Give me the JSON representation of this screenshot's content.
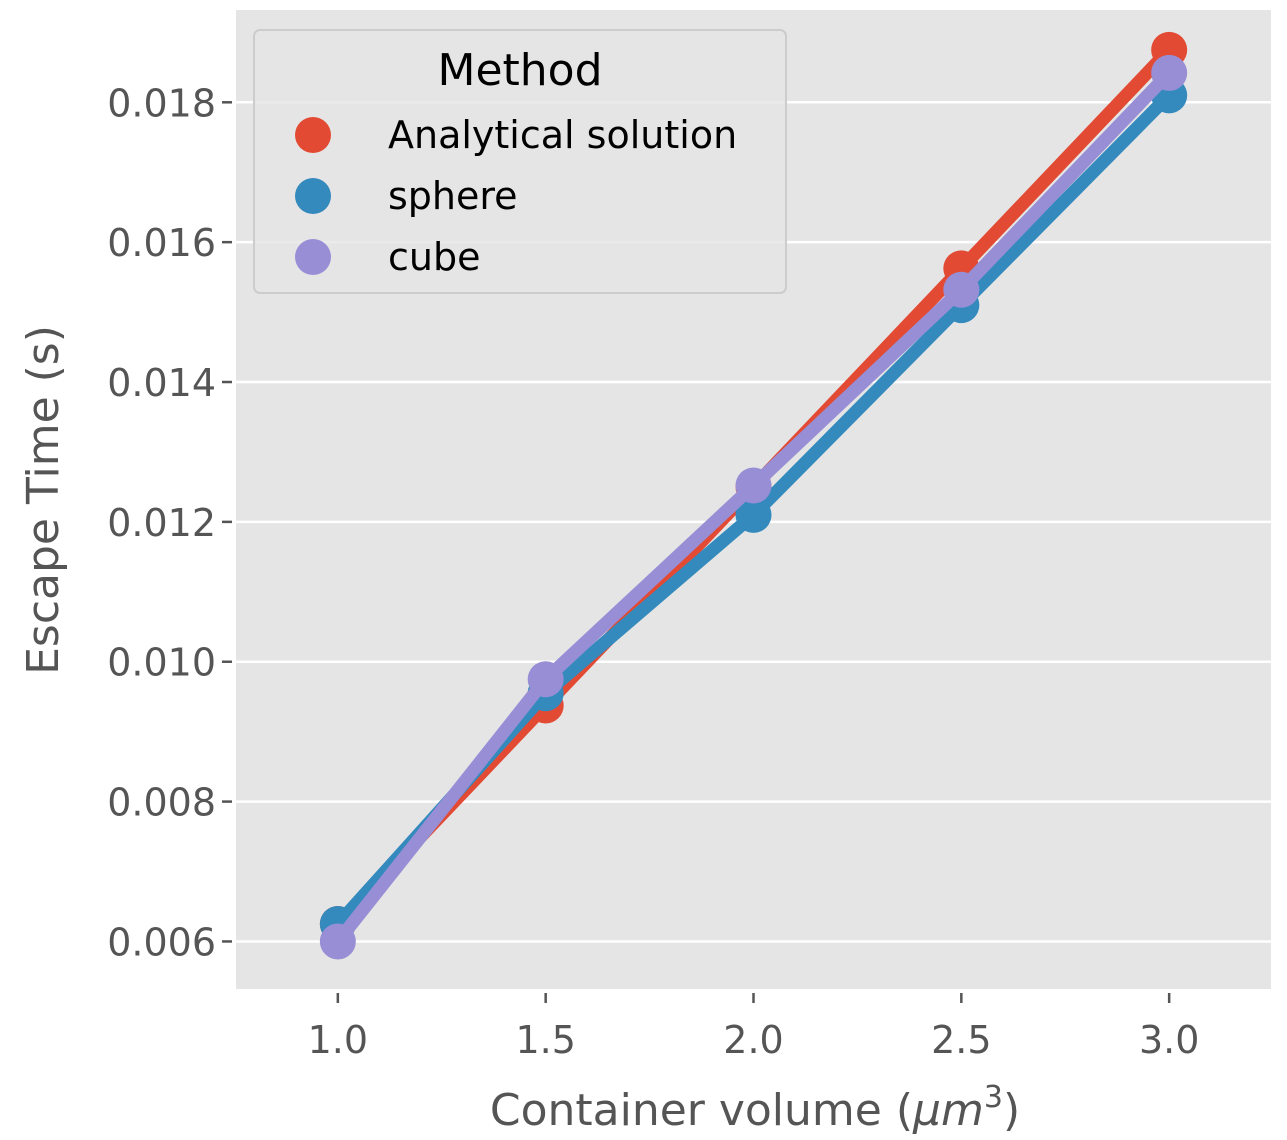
{
  "chart_data": {
    "type": "line",
    "xlabel": "Container volume",
    "xlabel_unit_base": "μm",
    "xlabel_unit_exp": "3",
    "ylabel": "Escape Time (s)",
    "x": [
      1.0,
      1.5,
      2.0,
      2.5,
      3.0
    ],
    "x_tick_labels": [
      "1.0",
      "1.5",
      "2.0",
      "2.5",
      "3.0"
    ],
    "y_ticks": [
      0.006,
      0.008,
      0.01,
      0.012,
      0.014,
      0.016,
      0.018
    ],
    "y_tick_labels": [
      "0.006",
      "0.008",
      "0.010",
      "0.012",
      "0.014",
      "0.016",
      "0.018"
    ],
    "xlim": [
      0.755,
      3.245
    ],
    "ylim": [
      0.00532,
      0.01932
    ],
    "grid": true,
    "legend": {
      "title": "Method",
      "placement": "top-left"
    },
    "series": [
      {
        "name": "Analytical solution",
        "color": "#e24a33",
        "values": [
          0.00625,
          0.009375,
          0.0125,
          0.015625,
          0.01875
        ]
      },
      {
        "name": "sphere",
        "color": "#348abd",
        "values": [
          0.00625,
          0.00955,
          0.0121,
          0.0151,
          0.0181
        ]
      },
      {
        "name": "cube",
        "color": "#988ed5",
        "values": [
          0.006,
          0.00975,
          0.01252,
          0.01532,
          0.01842
        ]
      }
    ]
  }
}
